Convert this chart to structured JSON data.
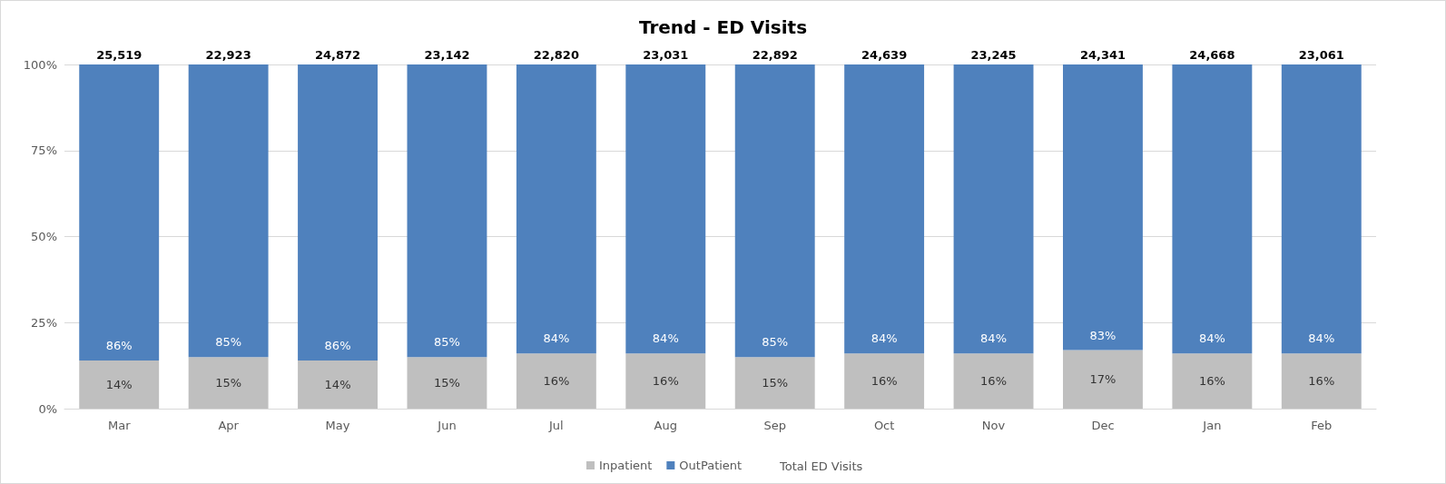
{
  "chart_data": {
    "type": "bar",
    "title": "Trend - ED Visits",
    "stacked": true,
    "categories": [
      "Mar",
      "Apr",
      "May",
      "Jun",
      "Jul",
      "Aug",
      "Sep",
      "Oct",
      "Nov",
      "Dec",
      "Jan",
      "Feb"
    ],
    "series": [
      {
        "name": "Inpatient",
        "color": "#bfbfbf",
        "values": [
          14,
          15,
          14,
          15,
          16,
          16,
          15,
          16,
          16,
          17,
          16,
          16
        ],
        "value_labels": [
          "14%",
          "15%",
          "14%",
          "15%",
          "16%",
          "16%",
          "15%",
          "16%",
          "16%",
          "17%",
          "16%",
          "16%"
        ]
      },
      {
        "name": "OutPatient",
        "color": "#4f81bd",
        "values": [
          86,
          85,
          86,
          85,
          84,
          84,
          85,
          84,
          84,
          83,
          84,
          84
        ],
        "value_labels": [
          "86%",
          "85%",
          "86%",
          "85%",
          "84%",
          "84%",
          "85%",
          "84%",
          "84%",
          "83%",
          "84%",
          "84%"
        ]
      }
    ],
    "annotations": [
      "Total ED Visits",
      {
        "text": "25,519",
        "x": "Mar",
        "y": 100
      },
      {
        "text": "22,923",
        "x": "Apr",
        "y": 100
      },
      {
        "text": "24,872",
        "x": "May",
        "y": 100
      },
      {
        "text": "23,142",
        "x": "Jun",
        "y": 100
      },
      {
        "text": "22,820",
        "x": "Jul",
        "y": 100
      },
      {
        "text": "23,031",
        "x": "Aug",
        "y": 100
      },
      {
        "text": "22,892",
        "x": "Sep",
        "y": 100
      },
      {
        "text": "24,639",
        "x": "Oct",
        "y": 100
      },
      {
        "text": "23,245",
        "x": "Nov",
        "y": 100
      },
      {
        "text": "24,341",
        "x": "Dec",
        "y": 100
      },
      {
        "text": "24,668",
        "x": "Jan",
        "y": 100
      },
      {
        "text": "23,061",
        "x": "Feb",
        "y": 100
      }
    ],
    "ylim": [
      0,
      100
    ],
    "yticks": [
      {
        "value": 0,
        "label": "0%"
      },
      {
        "value": 25,
        "label": "25%"
      },
      {
        "value": 50,
        "label": "50%"
      },
      {
        "value": 75,
        "label": "75%"
      },
      {
        "value": 100,
        "label": "100%"
      }
    ],
    "grid": "y",
    "legend": "bottom"
  }
}
